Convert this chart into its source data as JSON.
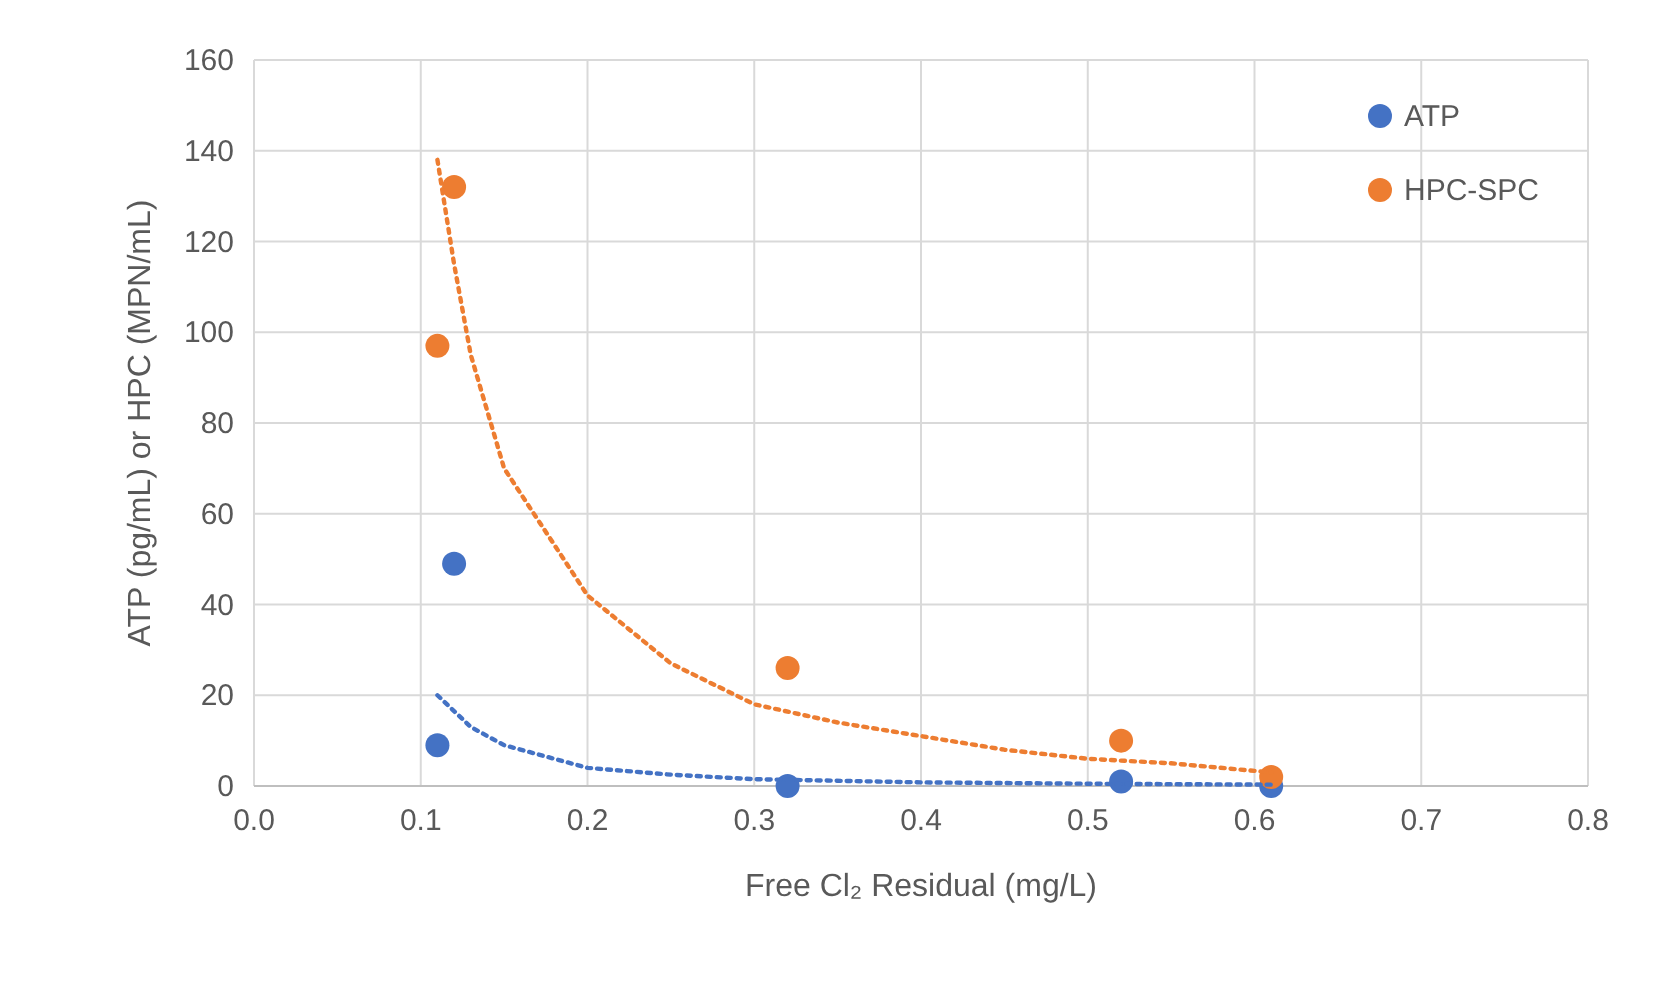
{
  "chart_data": {
    "type": "scatter",
    "xlabel": "Free Cl₂ Residual (mg/L)",
    "ylabel": "ATP  (pg/mL) or HPC (MPN/mL)",
    "xlim": [
      0,
      0.8
    ],
    "ylim": [
      0,
      160
    ],
    "xticks": [
      {
        "value": 0,
        "label": "0.0"
      },
      {
        "value": 0.1,
        "label": "0.1"
      },
      {
        "value": 0.2,
        "label": "0.2"
      },
      {
        "value": 0.3,
        "label": "0.3"
      },
      {
        "value": 0.4,
        "label": "0.4"
      },
      {
        "value": 0.5,
        "label": "0.5"
      },
      {
        "value": 0.6,
        "label": "0.6"
      },
      {
        "value": 0.7,
        "label": "0.7"
      },
      {
        "value": 0.8,
        "label": "0.8"
      }
    ],
    "yticks": [
      0,
      20,
      40,
      60,
      80,
      100,
      120,
      140,
      160
    ],
    "grid": true,
    "legend": "top right",
    "marker": "circle",
    "series": [
      {
        "name": "ATP",
        "color": "#4472c4",
        "x": [
          0.11,
          0.12,
          0.32,
          0.52,
          0.61
        ],
        "values": [
          9,
          49,
          0,
          1,
          0
        ]
      },
      {
        "name": "HPC-SPC",
        "color": "#ed7d31",
        "x": [
          0.11,
          0.12,
          0.32,
          0.52,
          0.61
        ],
        "values": [
          97,
          132,
          26,
          10,
          2
        ]
      },
      {
        "type": "line",
        "color": "#4472c4",
        "line_style": "dotted",
        "marker": "none",
        "x": [
          0.11,
          0.13,
          0.15,
          0.2,
          0.25,
          0.3,
          0.4,
          0.5,
          0.61
        ],
        "values": [
          20,
          13,
          9,
          4,
          2.5,
          1.5,
          0.8,
          0.5,
          0.3
        ]
      },
      {
        "type": "line",
        "color": "#ed7d31",
        "line_style": "dotted",
        "marker": "none",
        "x": [
          0.11,
          0.12,
          0.13,
          0.15,
          0.2,
          0.25,
          0.3,
          0.35,
          0.4,
          0.45,
          0.5,
          0.55,
          0.61
        ],
        "values": [
          138,
          115,
          95,
          70,
          42,
          27,
          18,
          14,
          11,
          8,
          6,
          5,
          3
        ]
      }
    ]
  }
}
